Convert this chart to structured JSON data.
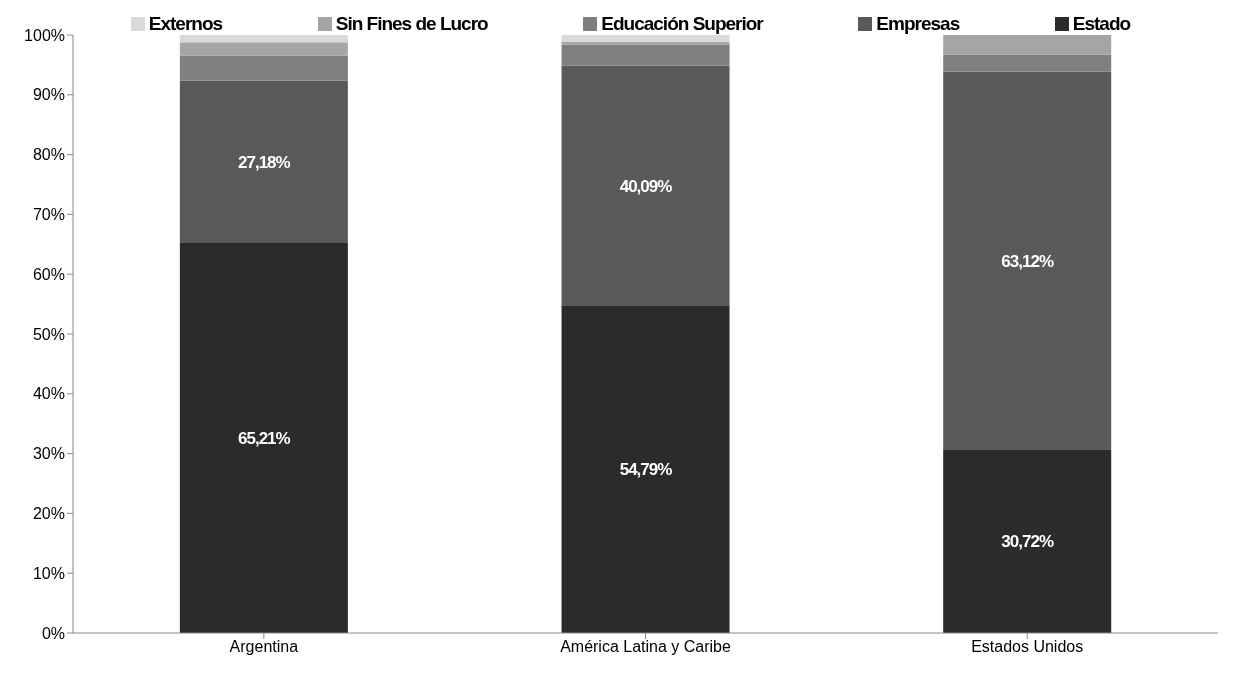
{
  "chart_data": {
    "type": "bar",
    "stacked": true,
    "categories": [
      "Argentina",
      "América Latina y Caribe",
      "Estados Unidos"
    ],
    "series": [
      {
        "name": "Estado",
        "color": "#2b2b2b",
        "values": [
          65.21,
          54.79,
          30.72
        ],
        "value_labels": [
          "65,21%",
          "54,79%",
          "30,72%"
        ]
      },
      {
        "name": "Empresas",
        "color": "#595959",
        "values": [
          27.18,
          40.09,
          63.12
        ],
        "value_labels": [
          "27,18%",
          "40,09%",
          "63,12%"
        ]
      },
      {
        "name": "Educación Superior",
        "color": "#7f7f7f",
        "values": [
          4.2,
          3.5,
          2.9
        ]
      },
      {
        "name": "Sin Fines de Lucro",
        "color": "#a5a5a5",
        "values": [
          2.2,
          0.5,
          3.3
        ]
      },
      {
        "name": "Externos",
        "color": "#d9d9d9",
        "values": [
          1.2,
          1.1,
          0
        ]
      }
    ],
    "ylim": [
      0,
      100
    ],
    "yticks": [
      {
        "value": 0,
        "label": "0%"
      },
      {
        "value": 10,
        "label": "10%"
      },
      {
        "value": 20,
        "label": "20%"
      },
      {
        "value": 30,
        "label": "30%"
      },
      {
        "value": 40,
        "label": "40%"
      },
      {
        "value": 50,
        "label": "50%"
      },
      {
        "value": 60,
        "label": "60%"
      },
      {
        "value": 70,
        "label": "70%"
      },
      {
        "value": 80,
        "label": "80%"
      },
      {
        "value": 90,
        "label": "90%"
      },
      {
        "value": 100,
        "label": "100%"
      }
    ],
    "grid": false,
    "legend": "top"
  }
}
